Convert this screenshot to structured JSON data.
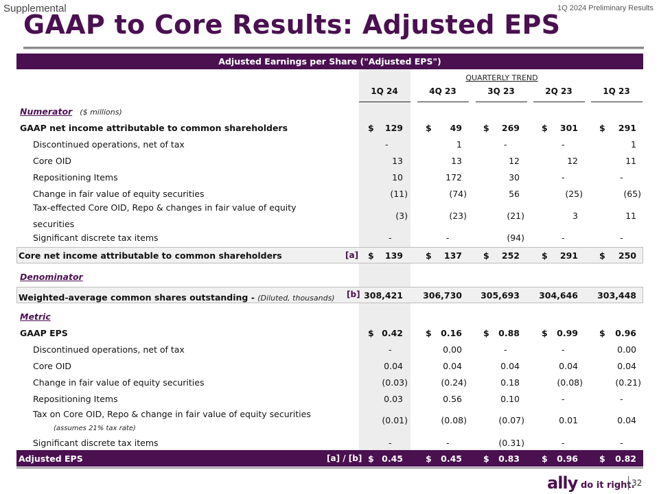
{
  "header": {
    "supplemental": "Supplemental",
    "preliminary": "1Q 2024 Preliminary Results",
    "title": "GAAP to Core Results: Adjusted EPS",
    "banner": "Adjusted Earnings per Share (\"Adjusted EPS\")",
    "trend_label": "QUARTERLY TREND"
  },
  "columns": [
    "1Q 24",
    "4Q 23",
    "3Q 23",
    "2Q 23",
    "1Q 23"
  ],
  "numerator": {
    "heading": "Numerator",
    "note": "($ millions)",
    "gaap_ni": {
      "label": "GAAP net income attributable to common shareholders",
      "values": [
        "129",
        "49",
        "269",
        "301",
        "291"
      ]
    },
    "rows": [
      {
        "label": "Discontinued operations, net of tax",
        "values": [
          "-",
          "1",
          "-",
          "-",
          "1"
        ]
      },
      {
        "label": "Core OID",
        "values": [
          "13",
          "13",
          "12",
          "12",
          "11"
        ]
      },
      {
        "label": "Repositioning Items",
        "values": [
          "10",
          "172",
          "30",
          "-",
          "-"
        ]
      },
      {
        "label": "Change in fair value of equity securities",
        "values": [
          "(11)",
          "(74)",
          "56",
          "(25)",
          "(65)"
        ]
      },
      {
        "label": "Tax-effected Core OID, Repo & changes in fair value of equity",
        "label2": "securities",
        "values": [
          "(3)",
          "(23)",
          "(21)",
          "3",
          "11"
        ]
      },
      {
        "label": "Significant discrete tax items",
        "values": [
          "-",
          "-",
          "(94)",
          "-",
          "-"
        ]
      }
    ],
    "core_ni": {
      "label": "Core net income attributable to common shareholders",
      "tag": "[a]",
      "values": [
        "139",
        "137",
        "252",
        "291",
        "250"
      ]
    }
  },
  "denominator": {
    "heading": "Denominator",
    "shares": {
      "label": "Weighted-average common shares outstanding - ",
      "note": "(Diluted, thousands)",
      "tag": "[b]",
      "values": [
        "308,421",
        "306,730",
        "305,693",
        "304,646",
        "303,448"
      ]
    }
  },
  "metric": {
    "heading": "Metric",
    "gaap_eps": {
      "label": "GAAP EPS",
      "values": [
        "0.42",
        "0.16",
        "0.88",
        "0.99",
        "0.96"
      ]
    },
    "rows": [
      {
        "label": "Discontinued operations, net of tax",
        "values": [
          "-",
          "0.00",
          "-",
          "-",
          "0.00"
        ]
      },
      {
        "label": "Core OID",
        "values": [
          "0.04",
          "0.04",
          "0.04",
          "0.04",
          "0.04"
        ]
      },
      {
        "label": "Change in fair value of equity securities",
        "values": [
          "(0.03)",
          "(0.24)",
          "0.18",
          "(0.08)",
          "(0.21)"
        ]
      },
      {
        "label": "Repositioning Items",
        "values": [
          "0.03",
          "0.56",
          "0.10",
          "-",
          "-"
        ]
      },
      {
        "label": "Tax on Core OID, Repo & change in fair value of equity securities",
        "sub": "(assumes 21% tax rate)",
        "values": [
          "(0.01)",
          "(0.08)",
          "(0.07)",
          "0.01",
          "0.04"
        ]
      },
      {
        "label": "Significant discrete tax items",
        "values": [
          "-",
          "-",
          "(0.31)",
          "-",
          "-"
        ]
      }
    ],
    "adjusted": {
      "label": "Adjusted EPS",
      "tag": "[a] / [b]",
      "values": [
        "0.45",
        "0.45",
        "0.83",
        "0.96",
        "0.82"
      ]
    }
  },
  "currency_symbol": "$",
  "footer": {
    "brand": "ally",
    "slogan": "do it right.",
    "page": "32"
  }
}
